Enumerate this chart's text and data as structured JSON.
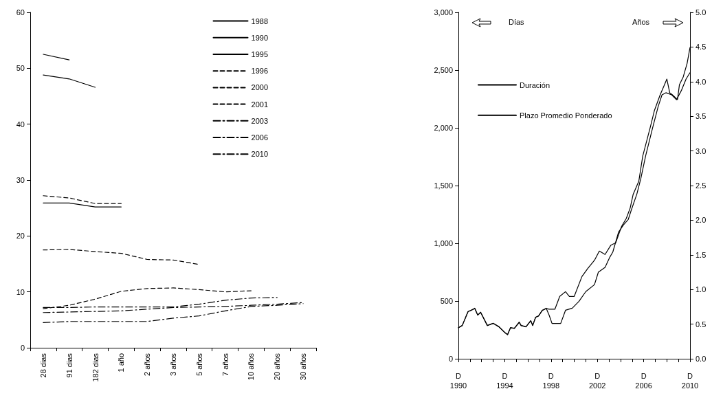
{
  "chart_data": [
    {
      "type": "line",
      "categories": [
        "28 dias",
        "91 dias",
        "182 dias",
        "1 año",
        "2 años",
        "3 años",
        "5 años",
        "7 años",
        "10 años",
        "20 años",
        "30 años"
      ],
      "ylim": [
        0,
        60
      ],
      "yticks": [
        0,
        10,
        20,
        30,
        40,
        50,
        60
      ],
      "grid": false,
      "legend": "top right",
      "marker": "none",
      "series": [
        {
          "name": "1988",
          "color": "#000000",
          "line_style": "solid",
          "values": [
            52.5,
            51.5,
            null,
            null,
            null,
            null,
            null,
            null,
            null,
            null,
            null
          ]
        },
        {
          "name": "1990",
          "color": "#000000",
          "line_style": "solid",
          "values": [
            48.8,
            48.1,
            46.6,
            null,
            null,
            null,
            null,
            null,
            null,
            null,
            null
          ]
        },
        {
          "name": "1995",
          "color": "#000000",
          "line_style": "solid",
          "values": [
            25.9,
            25.9,
            25.2,
            25.2,
            null,
            null,
            null,
            null,
            null,
            null,
            null
          ]
        },
        {
          "name": "1996",
          "color": "#000000",
          "line_style": "dashed",
          "values": [
            27.2,
            26.8,
            25.8,
            25.8,
            null,
            null,
            null,
            null,
            null,
            null,
            null
          ]
        },
        {
          "name": "2000",
          "color": "#000000",
          "line_style": "dashed",
          "values": [
            17.5,
            17.6,
            17.2,
            16.9,
            15.8,
            15.7,
            14.9,
            null,
            null,
            null,
            null
          ]
        },
        {
          "name": "2001",
          "color": "#000000",
          "line_style": "dashed",
          "values": [
            7.0,
            7.6,
            8.7,
            10.1,
            10.6,
            10.7,
            10.4,
            10.0,
            10.2,
            null,
            null
          ]
        },
        {
          "name": "2003",
          "color": "#000000",
          "line_style": "dashdot",
          "values": [
            7.2,
            7.2,
            7.3,
            7.3,
            7.3,
            7.3,
            7.8,
            8.5,
            8.9,
            9.0,
            null
          ]
        },
        {
          "name": "2006",
          "color": "#000000",
          "line_style": "dashdot",
          "values": [
            6.3,
            6.4,
            6.5,
            6.6,
            6.9,
            7.2,
            7.3,
            7.4,
            7.6,
            7.8,
            8.1
          ]
        },
        {
          "name": "2010",
          "color": "#000000",
          "line_style": "dashdot",
          "values": [
            4.5,
            4.7,
            4.7,
            4.7,
            4.7,
            5.3,
            5.7,
            6.6,
            7.4,
            7.6,
            7.9
          ]
        }
      ]
    },
    {
      "type": "line",
      "xlim": [
        "1990-12",
        "2010-12"
      ],
      "xticks": [
        {
          "value": "1990-12",
          "label": "D\n1990"
        },
        {
          "value": "1991-12",
          "label": null
        },
        {
          "value": "1992-12",
          "label": null
        },
        {
          "value": "1993-12",
          "label": null
        },
        {
          "value": "1994-12",
          "label": "D\n1994"
        },
        {
          "value": "1995-12",
          "label": null
        },
        {
          "value": "1996-12",
          "label": null
        },
        {
          "value": "1997-12",
          "label": null
        },
        {
          "value": "1998-12",
          "label": "D\n1998"
        },
        {
          "value": "1999-12",
          "label": null
        },
        {
          "value": "2000-12",
          "label": null
        },
        {
          "value": "2001-12",
          "label": null
        },
        {
          "value": "2002-12",
          "label": "D\n2002"
        },
        {
          "value": "2003-12",
          "label": null
        },
        {
          "value": "2004-12",
          "label": null
        },
        {
          "value": "2005-12",
          "label": null
        },
        {
          "value": "2006-12",
          "label": "D\n2006"
        },
        {
          "value": "2007-12",
          "label": null
        },
        {
          "value": "2008-12",
          "label": null
        },
        {
          "value": "2009-12",
          "label": null
        },
        {
          "value": "2010-12",
          "label": "D\n2010"
        }
      ],
      "ylim": [
        0,
        3000
      ],
      "yticks": [
        0,
        500,
        {
          "value": 1000,
          "label": "1,000"
        },
        {
          "value": 1500,
          "label": "1,500"
        },
        {
          "value": 2000,
          "label": "2,000"
        },
        {
          "value": 2500,
          "label": "2,500"
        },
        {
          "value": 3000,
          "label": "3,000"
        }
      ],
      "y2lim": [
        0,
        5
      ],
      "y2ticks": [
        {
          "value": 0,
          "label": "0.0"
        },
        {
          "value": 0.5,
          "label": "0.5"
        },
        {
          "value": 1,
          "label": "1.0"
        },
        {
          "value": 1.5,
          "label": "1.5"
        },
        {
          "value": 2,
          "label": "2.0"
        },
        {
          "value": 2.5,
          "label": "2.5"
        },
        {
          "value": 3,
          "label": "3.0"
        },
        {
          "value": 3.5,
          "label": "3.5"
        },
        {
          "value": 4,
          "label": "4.0"
        },
        {
          "value": 4.5,
          "label": "4.5"
        },
        {
          "value": 5,
          "label": "5.0"
        }
      ],
      "grid": false,
      "legend": "top left",
      "marker": "none",
      "annotations": [
        "Días",
        "Años"
      ],
      "series": [
        {
          "name": "Duración",
          "color": "#000000",
          "axis": "y2",
          "x": [
            "1990-12",
            "1991-04",
            "1991-10",
            "1992-01",
            "1992-05",
            "1992-08",
            "1992-11",
            "1993-06",
            "1993-12",
            "1994-06",
            "1994-12",
            "1995-03",
            "1995-06",
            "1995-10",
            "1996-03",
            "1996-05",
            "1996-10",
            "1997-03",
            "1997-05",
            "1997-08",
            "1997-11",
            "1998-03",
            "1998-07",
            "1998-10",
            "1999-01",
            "1999-10",
            "2000-03",
            "2000-10",
            "2001-05",
            "2001-12",
            "2002-09",
            "2003-01",
            "2003-08",
            "2004-01",
            "2004-04",
            "2004-10",
            "2005-03",
            "2005-08",
            "2005-11",
            "2006-05",
            "2006-09",
            "2007-02",
            "2007-09",
            "2008-03",
            "2008-07",
            "2008-11",
            "2009-05",
            "2009-10",
            "2010-03",
            "2010-08",
            "2010-12"
          ],
          "values": [
            0.45,
            0.48,
            0.68,
            0.7,
            0.73,
            0.63,
            0.67,
            0.48,
            0.51,
            0.46,
            0.38,
            0.35,
            0.45,
            0.44,
            0.53,
            0.48,
            0.46,
            0.55,
            0.48,
            0.6,
            0.62,
            0.7,
            0.73,
            0.63,
            0.51,
            0.51,
            0.7,
            0.73,
            0.83,
            0.97,
            1.07,
            1.25,
            1.32,
            1.47,
            1.54,
            1.83,
            1.93,
            2.01,
            2.14,
            2.38,
            2.6,
            2.93,
            3.32,
            3.64,
            3.81,
            3.84,
            3.81,
            3.74,
            3.87,
            4.04,
            4.13
          ]
        },
        {
          "name": "Plazo Promedio Ponderado",
          "color": "#000000",
          "x": [
            "1990-12",
            "1991-04",
            "1991-10",
            "1992-01",
            "1992-05",
            "1992-08",
            "1992-11",
            "1993-06",
            "1993-12",
            "1994-06",
            "1994-12",
            "1995-03",
            "1995-06",
            "1995-10",
            "1996-03",
            "1996-05",
            "1996-10",
            "1997-03",
            "1997-05",
            "1997-08",
            "1997-11",
            "1998-03",
            "1998-07",
            "1998-10",
            "1999-04",
            "1999-09",
            "2000-03",
            "2000-07",
            "2000-12",
            "2001-08",
            "2002-02",
            "2002-09",
            "2003-02",
            "2003-08",
            "2004-02",
            "2004-07",
            "2005-01",
            "2005-06",
            "2005-10",
            "2006-01",
            "2006-07",
            "2006-11",
            "2007-07",
            "2007-11",
            "2008-05",
            "2008-09",
            "2008-12",
            "2009-03",
            "2009-06",
            "2009-11",
            "2010-01",
            "2010-05",
            "2010-09",
            "2010-12"
          ],
          "values": [
            268,
            288,
            409,
            419,
            435,
            379,
            403,
            288,
            308,
            278,
            228,
            208,
            268,
            262,
            315,
            288,
            278,
            329,
            288,
            359,
            369,
            419,
            435,
            429,
            429,
            540,
            581,
            540,
            540,
            712,
            782,
            853,
            933,
            903,
            984,
            1004,
            1145,
            1216,
            1306,
            1422,
            1539,
            1755,
            2010,
            2147,
            2284,
            2363,
            2422,
            2304,
            2284,
            2245,
            2373,
            2441,
            2559,
            2696
          ]
        }
      ]
    }
  ]
}
